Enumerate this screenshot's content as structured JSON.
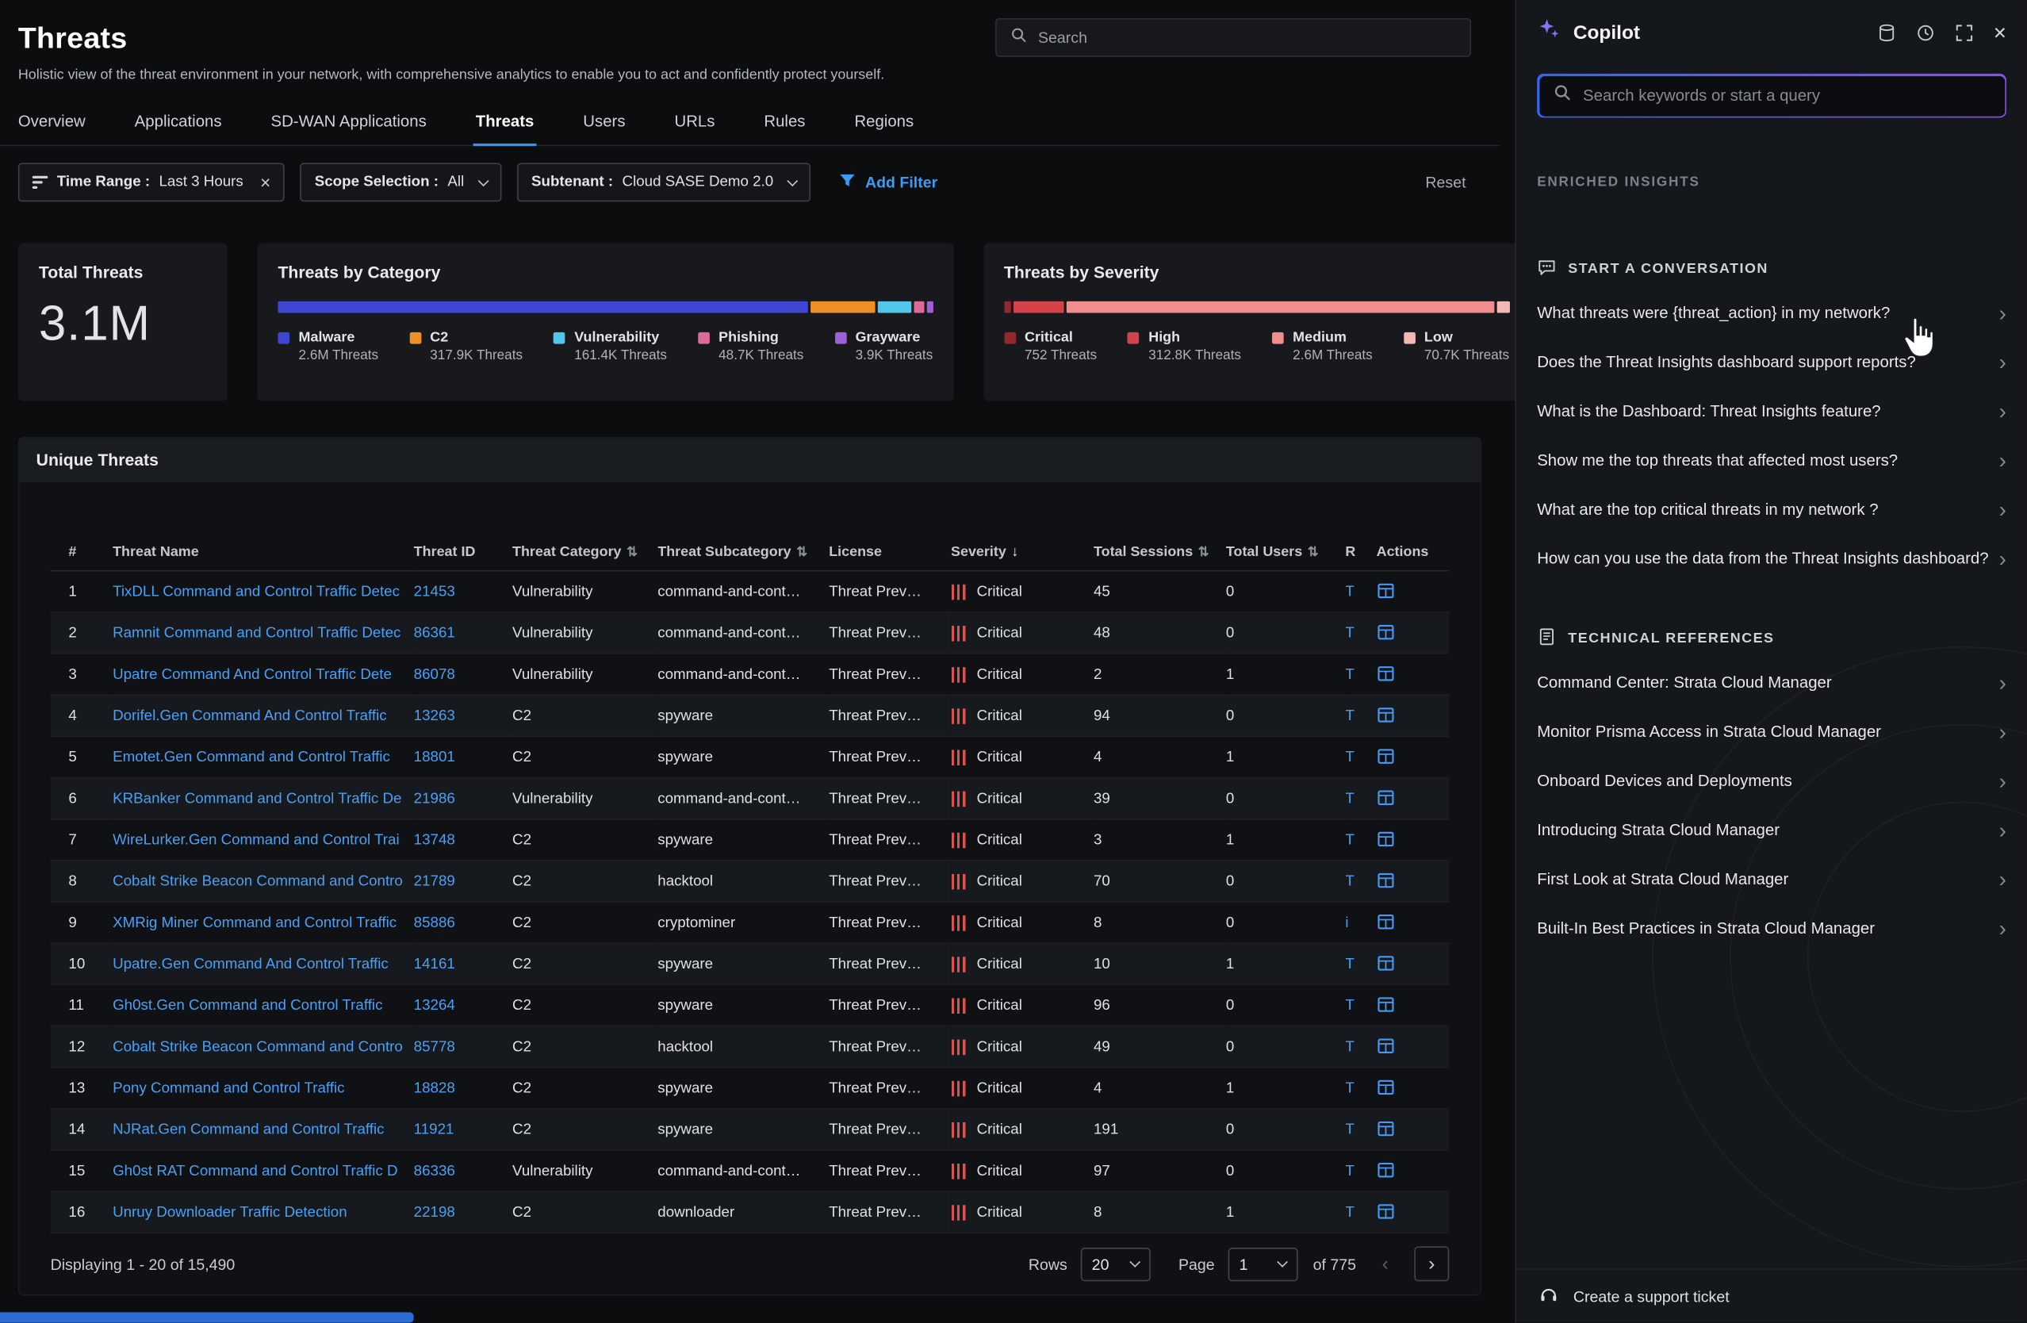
{
  "page": {
    "title": "Threats",
    "subtitle": "Holistic view of the threat environment in your network, with comprehensive analytics to enable you to act and confidently protect yourself.",
    "search_placeholder": "Search"
  },
  "tabs": [
    "Overview",
    "Applications",
    "SD-WAN Applications",
    "Threats",
    "Users",
    "URLs",
    "Rules",
    "Regions"
  ],
  "active_tab": "Threats",
  "filters": {
    "time_range": {
      "label": "Time Range :",
      "value": "Last 3 Hours"
    },
    "scope": {
      "label": "Scope Selection :",
      "value": "All"
    },
    "subtenant": {
      "label": "Subtenant :",
      "value": "Cloud SASE Demo 2.0"
    },
    "add_filter_label": "Add Filter",
    "reset_label": "Reset"
  },
  "cards": {
    "total": {
      "title": "Total Threats",
      "value": "3.1M"
    },
    "category": {
      "title": "Threats by Category",
      "items": [
        {
          "label": "Malware",
          "display": "2.6M Threats",
          "value": 2600000,
          "color": "#3f46d2"
        },
        {
          "label": "C2",
          "display": "317.9K Threats",
          "value": 317900,
          "color": "#ee8f28"
        },
        {
          "label": "Vulnerability",
          "display": "161.4K Threats",
          "value": 161400,
          "color": "#53c5e8"
        },
        {
          "label": "Phishing",
          "display": "48.7K Threats",
          "value": 48700,
          "color": "#de6a9a"
        },
        {
          "label": "Grayware",
          "display": "3.9K Threats",
          "value": 3900,
          "color": "#a05fd8"
        }
      ]
    },
    "severity": {
      "title": "Threats by Severity",
      "items": [
        {
          "label": "Critical",
          "display": "752 Threats",
          "value": 752,
          "color": "#94282c"
        },
        {
          "label": "High",
          "display": "312.8K Threats",
          "value": 312800,
          "color": "#d4434a"
        },
        {
          "label": "Medium",
          "display": "2.6M Threats",
          "value": 2600000,
          "color": "#ef8e8e"
        },
        {
          "label": "Low",
          "display": "70.7K Threats",
          "value": 70700,
          "color": "#f2b8b4"
        }
      ]
    }
  },
  "table": {
    "title": "Unique Threats",
    "columns": [
      {
        "label": "#"
      },
      {
        "label": "Threat Name"
      },
      {
        "label": "Threat ID"
      },
      {
        "label": "Threat Category",
        "sort": "both"
      },
      {
        "label": "Threat Subcategory",
        "sort": "both"
      },
      {
        "label": "License"
      },
      {
        "label": "Severity",
        "sort": "down"
      },
      {
        "label": "Total Sessions",
        "sort": "both"
      },
      {
        "label": "Total Users",
        "sort": "both"
      },
      {
        "label": "R"
      },
      {
        "label": "Actions"
      }
    ],
    "rows": [
      {
        "idx": "1",
        "name": "TixDLL Command and Control Traffic Detec",
        "id": "21453",
        "category": "Vulnerability",
        "subcategory": "command-and-cont…",
        "license": "Threat Prev…",
        "severity": "Critical",
        "sessions": "45",
        "users": "0",
        "r": "T"
      },
      {
        "idx": "2",
        "name": "Ramnit Command and Control Traffic Detec",
        "id": "86361",
        "category": "Vulnerability",
        "subcategory": "command-and-cont…",
        "license": "Threat Prev…",
        "severity": "Critical",
        "sessions": "48",
        "users": "0",
        "r": "T"
      },
      {
        "idx": "3",
        "name": "Upatre Command And Control Traffic Dete",
        "id": "86078",
        "category": "Vulnerability",
        "subcategory": "command-and-cont…",
        "license": "Threat Prev…",
        "severity": "Critical",
        "sessions": "2",
        "users": "1",
        "r": "T"
      },
      {
        "idx": "4",
        "name": "Dorifel.Gen Command And Control Traffic",
        "id": "13263",
        "category": "C2",
        "subcategory": "spyware",
        "license": "Threat Prev…",
        "severity": "Critical",
        "sessions": "94",
        "users": "0",
        "r": "T"
      },
      {
        "idx": "5",
        "name": "Emotet.Gen Command and Control Traffic",
        "id": "18801",
        "category": "C2",
        "subcategory": "spyware",
        "license": "Threat Prev…",
        "severity": "Critical",
        "sessions": "4",
        "users": "1",
        "r": "T"
      },
      {
        "idx": "6",
        "name": "KRBanker Command and Control Traffic De",
        "id": "21986",
        "category": "Vulnerability",
        "subcategory": "command-and-cont…",
        "license": "Threat Prev…",
        "severity": "Critical",
        "sessions": "39",
        "users": "0",
        "r": "T"
      },
      {
        "idx": "7",
        "name": "WireLurker.Gen Command and Control Trai",
        "id": "13748",
        "category": "C2",
        "subcategory": "spyware",
        "license": "Threat Prev…",
        "severity": "Critical",
        "sessions": "3",
        "users": "1",
        "r": "T"
      },
      {
        "idx": "8",
        "name": "Cobalt Strike Beacon Command and Contro",
        "id": "21789",
        "category": "C2",
        "subcategory": "hacktool",
        "license": "Threat Prev…",
        "severity": "Critical",
        "sessions": "70",
        "users": "0",
        "r": "T"
      },
      {
        "idx": "9",
        "name": "XMRig Miner Command and Control Traffic",
        "id": "85886",
        "category": "C2",
        "subcategory": "cryptominer",
        "license": "Threat Prev…",
        "severity": "Critical",
        "sessions": "8",
        "users": "0",
        "r": "i"
      },
      {
        "idx": "10",
        "name": "Upatre.Gen Command And Control Traffic",
        "id": "14161",
        "category": "C2",
        "subcategory": "spyware",
        "license": "Threat Prev…",
        "severity": "Critical",
        "sessions": "10",
        "users": "1",
        "r": "T"
      },
      {
        "idx": "11",
        "name": "Gh0st.Gen Command and Control Traffic",
        "id": "13264",
        "category": "C2",
        "subcategory": "spyware",
        "license": "Threat Prev…",
        "severity": "Critical",
        "sessions": "96",
        "users": "0",
        "r": "T"
      },
      {
        "idx": "12",
        "name": "Cobalt Strike Beacon Command and Contro",
        "id": "85778",
        "category": "C2",
        "subcategory": "hacktool",
        "license": "Threat Prev…",
        "severity": "Critical",
        "sessions": "49",
        "users": "0",
        "r": "T"
      },
      {
        "idx": "13",
        "name": "Pony Command and Control Traffic",
        "id": "18828",
        "category": "C2",
        "subcategory": "spyware",
        "license": "Threat Prev…",
        "severity": "Critical",
        "sessions": "4",
        "users": "1",
        "r": "T"
      },
      {
        "idx": "14",
        "name": "NJRat.Gen Command and Control Traffic",
        "id": "11921",
        "category": "C2",
        "subcategory": "spyware",
        "license": "Threat Prev…",
        "severity": "Critical",
        "sessions": "191",
        "users": "0",
        "r": "T"
      },
      {
        "idx": "15",
        "name": "Gh0st RAT Command and Control Traffic D",
        "id": "86336",
        "category": "Vulnerability",
        "subcategory": "command-and-cont…",
        "license": "Threat Prev…",
        "severity": "Critical",
        "sessions": "97",
        "users": "0",
        "r": "T"
      },
      {
        "idx": "16",
        "name": "Unruy Downloader Traffic Detection",
        "id": "22198",
        "category": "C2",
        "subcategory": "downloader",
        "license": "Threat Prev…",
        "severity": "Critical",
        "sessions": "8",
        "users": "1",
        "r": "T"
      }
    ],
    "footer": {
      "displaying": "Displaying 1 - 20 of 15,490",
      "rows_label": "Rows",
      "rows_value": "20",
      "page_label": "Page",
      "page_value": "1",
      "of_label": "of 775"
    }
  },
  "copilot": {
    "title": "Copilot",
    "search_placeholder": "Search keywords or start a query",
    "insights_label": "ENRICHED INSIGHTS",
    "conversation": {
      "header": "START A CONVERSATION",
      "items": [
        "What threats were {threat_action} in my network?",
        "Does the Threat Insights dashboard support reports?",
        "What is the Dashboard: Threat Insights feature?",
        "Show me the top threats that affected most users?",
        "What are the top critical threats in my network ?",
        "How can you use the data from the Threat Insights dashboard?"
      ]
    },
    "references": {
      "header": "TECHNICAL REFERENCES",
      "items": [
        "Command Center: Strata Cloud Manager",
        "Monitor Prisma Access in Strata Cloud Manager",
        "Onboard Devices and Deployments",
        "Introducing Strata Cloud Manager",
        "First Look at Strata Cloud Manager",
        "Built-In Best Practices in Strata Cloud Manager"
      ]
    },
    "support_label": "Create a support ticket"
  }
}
